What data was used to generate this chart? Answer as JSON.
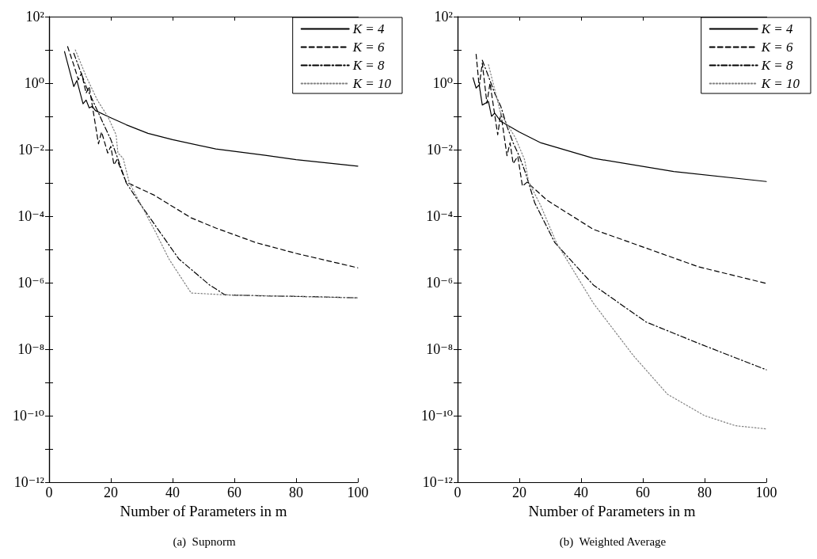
{
  "chart_data": [
    {
      "type": "line",
      "title": "(a)  Supnorm",
      "xlabel": "Number of Parameters in m",
      "log": "y",
      "grid": false,
      "legend": "top right",
      "marker": "none",
      "xlim": [
        0,
        100
      ],
      "xticks": [
        0,
        20,
        40,
        60,
        80,
        100
      ],
      "ylim": [
        1e-12,
        100
      ],
      "yticks": [
        {
          "value": 1e-12,
          "label": "10⁻¹²"
        },
        {
          "value": 1e-11,
          "label": null
        },
        {
          "value": 1e-10,
          "label": "10⁻¹⁰"
        },
        {
          "value": 1e-09,
          "label": null
        },
        {
          "value": 1e-08,
          "label": "10⁻⁸"
        },
        {
          "value": 1e-07,
          "label": null
        },
        {
          "value": 1e-06,
          "label": "10⁻⁶"
        },
        {
          "value": 1e-05,
          "label": null
        },
        {
          "value": 0.0001,
          "label": "10⁻⁴"
        },
        {
          "value": 0.001,
          "label": null
        },
        {
          "value": 0.01,
          "label": "10⁻²"
        },
        {
          "value": 0.1,
          "label": null
        },
        {
          "value": 1,
          "label": "10⁰"
        },
        {
          "value": 10,
          "label": null
        },
        {
          "value": 100,
          "label": "10²"
        }
      ],
      "series": [
        {
          "name": "K = 4",
          "color": "#000000",
          "line_style": "solid",
          "x": [
            5,
            8,
            9,
            11,
            12,
            13,
            14,
            15,
            19,
            25,
            32,
            40,
            54,
            70,
            80,
            100
          ],
          "values": [
            8.9,
            0.79,
            1.2,
            0.24,
            0.31,
            0.18,
            0.2,
            0.15,
            0.1,
            0.056,
            0.031,
            0.02,
            0.0105,
            0.0068,
            0.005,
            0.0032
          ]
        },
        {
          "name": "K = 6",
          "color": "#000000",
          "line_style": "dashed",
          "x": [
            6,
            8,
            9.5,
            10.5,
            12,
            13,
            16,
            17,
            19,
            20,
            21,
            22,
            25,
            34,
            46,
            54,
            67,
            80,
            100
          ],
          "values": [
            12.6,
            3.5,
            1.26,
            2.0,
            0.5,
            0.79,
            0.015,
            0.034,
            0.0079,
            0.0126,
            0.0035,
            0.005,
            0.00105,
            0.00043,
            8.9e-05,
            4.4e-05,
            1.6e-05,
            7.6e-06,
            2.8e-06
          ]
        },
        {
          "name": "K = 8",
          "color": "#000000",
          "line_style": "dashdot",
          "x": [
            8,
            10,
            12,
            14,
            16,
            18,
            20,
            22,
            25,
            30,
            42,
            52,
            57,
            70,
            85,
            100
          ],
          "values": [
            7.9,
            2.5,
            0.79,
            0.32,
            0.126,
            0.05,
            0.02,
            0.0063,
            0.001,
            0.0002,
            5.2e-06,
            8.5e-07,
            4.3e-07,
            4e-07,
            3.8e-07,
            3.5e-07
          ]
        },
        {
          "name": "K = 10",
          "color": "#808080",
          "line_style": "dotted",
          "x": [
            8.5,
            12,
            15.7,
            19,
            21.7,
            22.3,
            24,
            26,
            34.5,
            38.8,
            46,
            57,
            100
          ],
          "values": [
            10,
            1.6,
            0.3,
            0.1,
            0.028,
            0.0079,
            0.0055,
            0.001,
            3.3e-05,
            5.2e-06,
            4.9e-07,
            4.3e-07,
            3.5e-07
          ]
        }
      ]
    },
    {
      "type": "line",
      "title": "(b)  Weighted Average",
      "xlabel": "Number of Parameters in m",
      "log": "y",
      "grid": false,
      "legend": "top right",
      "marker": "none",
      "xlim": [
        0,
        100
      ],
      "xticks": [
        0,
        20,
        40,
        60,
        80,
        100
      ],
      "ylim": [
        1e-12,
        100
      ],
      "yticks": [
        {
          "value": 1e-12,
          "label": "10⁻¹²"
        },
        {
          "value": 1e-11,
          "label": null
        },
        {
          "value": 1e-10,
          "label": "10⁻¹⁰"
        },
        {
          "value": 1e-09,
          "label": null
        },
        {
          "value": 1e-08,
          "label": "10⁻⁸"
        },
        {
          "value": 1e-07,
          "label": null
        },
        {
          "value": 1e-06,
          "label": "10⁻⁶"
        },
        {
          "value": 1e-05,
          "label": null
        },
        {
          "value": 0.0001,
          "label": "10⁻⁴"
        },
        {
          "value": 0.001,
          "label": null
        },
        {
          "value": 0.01,
          "label": "10⁻²"
        },
        {
          "value": 0.1,
          "label": null
        },
        {
          "value": 1,
          "label": "10⁰"
        },
        {
          "value": 10,
          "label": null
        },
        {
          "value": 100,
          "label": "10²"
        }
      ],
      "series": [
        {
          "name": "K = 4",
          "color": "#000000",
          "line_style": "solid",
          "x": [
            5,
            6,
            7,
            8,
            10,
            11,
            12,
            14,
            20,
            27,
            44,
            70,
            100
          ],
          "values": [
            1.45,
            0.71,
            0.89,
            0.22,
            0.28,
            0.1,
            0.126,
            0.071,
            0.034,
            0.016,
            0.0055,
            0.0022,
            0.0011
          ]
        },
        {
          "name": "K = 6",
          "color": "#000000",
          "line_style": "dashed",
          "x": [
            6,
            7,
            8,
            9.5,
            10.5,
            13,
            14,
            16,
            17,
            18,
            19.5,
            21,
            22.5,
            29,
            44,
            61,
            78,
            100
          ],
          "values": [
            7.4,
            0.79,
            4,
            0.25,
            1,
            0.028,
            0.126,
            0.0066,
            0.016,
            0.0038,
            0.0063,
            0.0008,
            0.00105,
            0.0003,
            4e-05,
            1.1e-05,
            3e-06,
            9.5e-07
          ]
        },
        {
          "name": "K = 8",
          "color": "#000000",
          "line_style": "dashdot",
          "x": [
            8,
            10,
            12,
            14,
            16,
            18,
            20,
            22,
            25,
            31.5,
            44,
            61,
            78,
            100
          ],
          "values": [
            4.9,
            1.6,
            0.5,
            0.2,
            0.05,
            0.016,
            0.0063,
            0.002,
            0.00025,
            1.6e-05,
            8.5e-07,
            6.6e-08,
            1.5e-08,
            2.4e-09
          ]
        },
        {
          "name": "K = 10",
          "color": "#808080",
          "line_style": "dotted",
          "x": [
            10,
            14,
            18.7,
            21.7,
            23,
            27,
            32,
            44,
            57,
            68,
            80,
            90,
            100
          ],
          "values": [
            3.6,
            0.12,
            0.023,
            0.005,
            0.0011,
            0.0002,
            1.6e-05,
            2.4e-07,
            6.3e-09,
            4.4e-10,
            1e-10,
            5e-11,
            4e-11
          ]
        }
      ]
    }
  ]
}
